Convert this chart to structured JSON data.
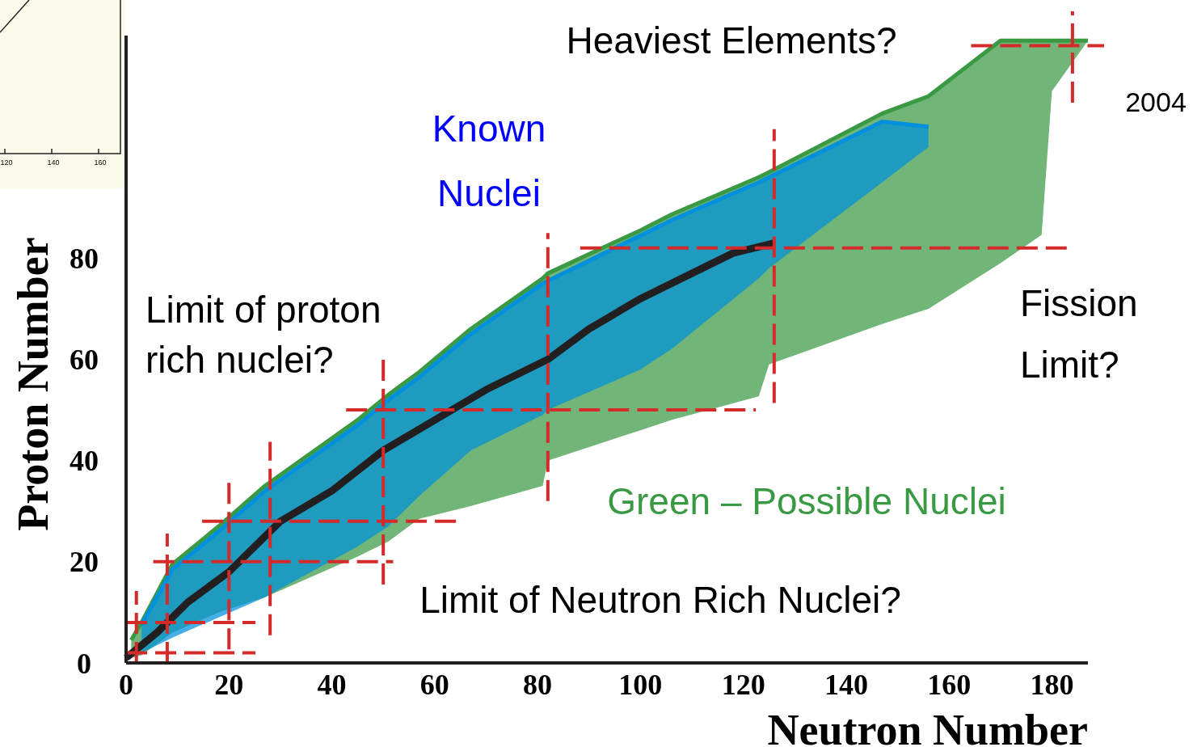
{
  "chart_data": {
    "type": "line",
    "xlabel": "Neutron Number",
    "ylabel": "Proton Number",
    "xlim": [
      0,
      187
    ],
    "ylim": [
      0,
      124
    ],
    "xticks": [
      0,
      20,
      40,
      60,
      80,
      100,
      120,
      140,
      160,
      180
    ],
    "yticks": [
      0,
      20,
      40,
      60,
      80
    ],
    "grid": false,
    "series": [
      {
        "name": "Green – Possible Nuclei",
        "color": "#3a9a44",
        "x": [
          1,
          3,
          9,
          18,
          27,
          45,
          51,
          57,
          67,
          81,
          82,
          100,
          106,
          123,
          125,
          147,
          156,
          170,
          178,
          180,
          187
        ],
        "values": [
          4.5,
          8,
          19.5,
          27,
          35,
          48,
          53,
          57.5,
          66,
          76,
          77,
          85.5,
          88.6,
          96,
          97,
          108.6,
          112,
          123,
          123,
          123,
          123
        ],
        "lower": [
          1,
          1.5,
          6,
          10,
          13,
          21,
          24,
          28.5,
          31,
          35,
          40,
          46,
          48,
          52.7,
          59,
          67,
          70,
          79,
          84.6,
          113,
          123
        ],
        "upper": [
          4.5,
          8,
          19.5,
          27,
          35,
          48,
          53,
          57.5,
          66,
          76,
          77,
          85.5,
          88.6,
          96,
          97,
          108.6,
          112,
          123,
          123,
          123,
          123
        ]
      },
      {
        "name": "Known Nuclei",
        "color": "#0090dd",
        "x": [
          3,
          9,
          18,
          27,
          45,
          51,
          57,
          67,
          81,
          82,
          100,
          106,
          123,
          125,
          147,
          156
        ],
        "values": [
          7.5,
          18.5,
          26,
          34,
          47,
          52,
          56.5,
          65,
          75,
          75.5,
          84.5,
          87.5,
          95,
          96,
          107,
          106
        ],
        "lower": [
          2,
          5,
          9,
          13,
          23,
          27,
          33,
          42,
          49,
          50,
          58,
          62,
          76,
          78,
          95,
          102
        ],
        "upper": [
          7.5,
          18.5,
          26,
          34,
          47,
          52,
          56.5,
          65,
          75,
          75.5,
          84.5,
          87.5,
          95,
          96,
          107,
          106
        ]
      },
      {
        "color": "#231f20",
        "x": [
          0,
          6,
          12,
          20,
          30,
          40,
          50,
          60,
          70,
          82,
          90,
          100,
          110,
          118,
          126
        ],
        "values": [
          1,
          6,
          12,
          18,
          28,
          34,
          42,
          48,
          54,
          60,
          66,
          72,
          77,
          81,
          83
        ]
      }
    ],
    "ref_lines": [
      {
        "axis": "x",
        "value": 2,
        "color": "#d42a2a",
        "line_style": "dashed"
      },
      {
        "axis": "x",
        "value": 8,
        "color": "#d42a2a",
        "line_style": "dashed"
      },
      {
        "axis": "x",
        "value": 20,
        "color": "#d42a2a",
        "line_style": "dashed"
      },
      {
        "axis": "x",
        "value": 28,
        "color": "#d42a2a",
        "line_style": "dashed"
      },
      {
        "axis": "x",
        "value": 50,
        "color": "#d42a2a",
        "line_style": "dashed"
      },
      {
        "axis": "x",
        "value": 82,
        "color": "#d42a2a",
        "line_style": "dashed"
      },
      {
        "axis": "x",
        "value": 126,
        "color": "#d42a2a",
        "line_style": "dashed"
      },
      {
        "axis": "x",
        "value": 184,
        "color": "#d42a2a",
        "line_style": "dashed"
      },
      {
        "axis": "y",
        "value": 2,
        "color": "#d42a2a",
        "line_style": "dashed"
      },
      {
        "axis": "y",
        "value": 8,
        "color": "#d42a2a",
        "line_style": "dashed"
      },
      {
        "axis": "y",
        "value": 20,
        "color": "#d42a2a",
        "line_style": "dashed"
      },
      {
        "axis": "y",
        "value": 28,
        "color": "#d42a2a",
        "line_style": "dashed"
      },
      {
        "axis": "y",
        "value": 50,
        "color": "#d42a2a",
        "line_style": "dashed"
      },
      {
        "axis": "y",
        "value": 82,
        "color": "#d42a2a",
        "line_style": "dashed"
      },
      {
        "axis": "y",
        "value": 122,
        "color": "#d42a2a",
        "line_style": "dashed"
      }
    ],
    "annotations": [
      "Heaviest Elements?",
      "Limit of proton rich nuclei?",
      "Fission Limit?",
      "Limit of Neutron Rich Nuclei?",
      "2004",
      "120",
      "140",
      "160"
    ]
  }
}
